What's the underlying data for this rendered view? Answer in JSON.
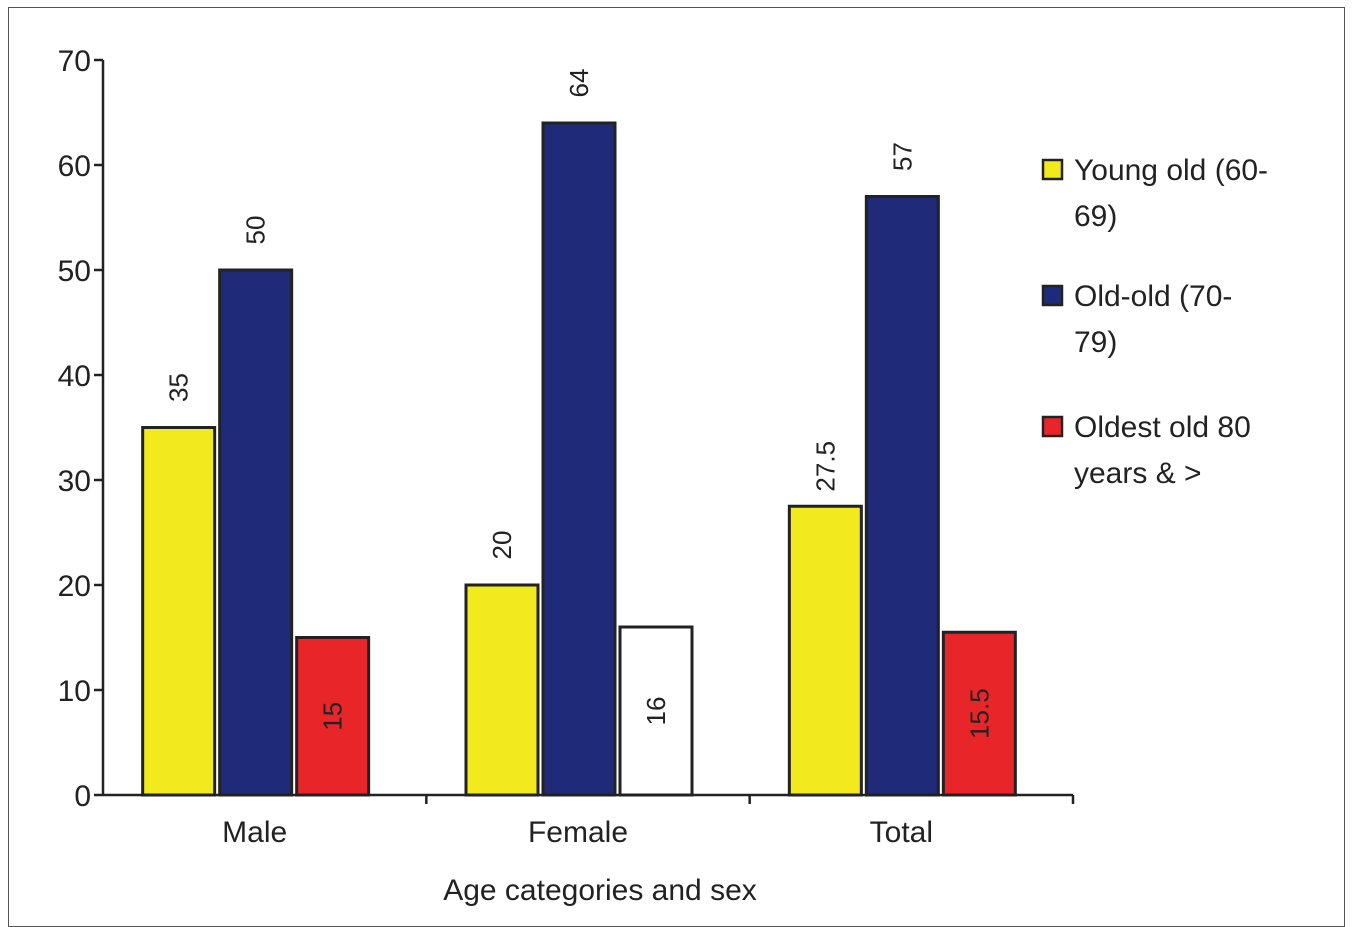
{
  "chart_data": {
    "type": "bar",
    "title": "",
    "xlabel": "Age categories and sex",
    "ylabel": "",
    "ylim": [
      0,
      70
    ],
    "yticks": [
      0,
      10,
      20,
      30,
      40,
      50,
      60,
      70
    ],
    "categories": [
      "Male",
      "Female",
      "Total"
    ],
    "series": [
      {
        "name": "Young old (60-69)",
        "legend_lines": [
          "Young old (60-",
          "69)"
        ],
        "color": "#f2ea1c",
        "values": [
          35,
          20,
          27.5
        ],
        "labels": [
          "35",
          "20",
          "27.5"
        ]
      },
      {
        "name": "Old-old (70-79)",
        "legend_lines": [
          "Old-old (70-",
          "79)"
        ],
        "color": "#1f2a78",
        "values": [
          50,
          64,
          57
        ],
        "labels": [
          "50",
          "64",
          "57"
        ]
      },
      {
        "name": "Oldest old 80 years & >",
        "legend_lines": [
          "Oldest old 80",
          "years & >"
        ],
        "color": "#e8262a",
        "point_colors": [
          "#e8262a",
          "#ffffff",
          "#e8262a"
        ],
        "values": [
          15,
          16,
          15.5
        ],
        "labels": [
          "15",
          "16",
          "15.5"
        ]
      }
    ],
    "legend_position": "right",
    "grid": false
  }
}
